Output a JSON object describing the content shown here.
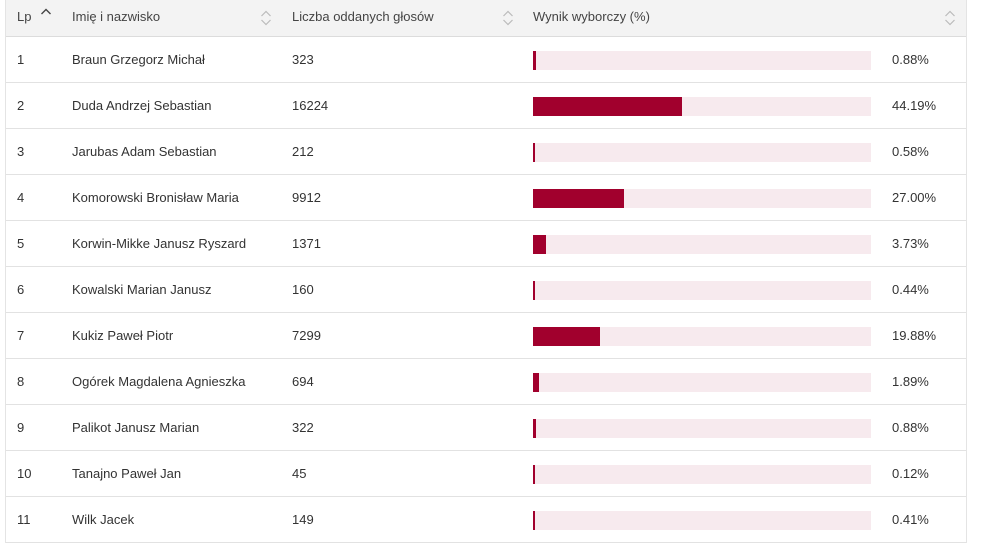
{
  "header": {
    "lp": "Lp",
    "name": "Imię i nazwisko",
    "votes": "Liczba oddanych głosów",
    "result": "Wynik wyborczy (%)"
  },
  "colors": {
    "bar": "#a1002d",
    "track": "#f7eaee"
  },
  "rows": [
    {
      "lp": "1",
      "name": "Braun Grzegorz Michał",
      "votes": "323",
      "pct_label": "0.88%",
      "pct": 0.88
    },
    {
      "lp": "2",
      "name": "Duda Andrzej Sebastian",
      "votes": "16224",
      "pct_label": "44.19%",
      "pct": 44.19
    },
    {
      "lp": "3",
      "name": "Jarubas Adam Sebastian",
      "votes": "212",
      "pct_label": "0.58%",
      "pct": 0.58
    },
    {
      "lp": "4",
      "name": "Komorowski Bronisław Maria",
      "votes": "9912",
      "pct_label": "27.00%",
      "pct": 27.0
    },
    {
      "lp": "5",
      "name": "Korwin-Mikke Janusz Ryszard",
      "votes": "1371",
      "pct_label": "3.73%",
      "pct": 3.73
    },
    {
      "lp": "6",
      "name": "Kowalski Marian Janusz",
      "votes": "160",
      "pct_label": "0.44%",
      "pct": 0.44
    },
    {
      "lp": "7",
      "name": "Kukiz Paweł Piotr",
      "votes": "7299",
      "pct_label": "19.88%",
      "pct": 19.88
    },
    {
      "lp": "8",
      "name": "Ogórek Magdalena Agnieszka",
      "votes": "694",
      "pct_label": "1.89%",
      "pct": 1.89
    },
    {
      "lp": "9",
      "name": "Palikot Janusz Marian",
      "votes": "322",
      "pct_label": "0.88%",
      "pct": 0.88
    },
    {
      "lp": "10",
      "name": "Tanajno Paweł Jan",
      "votes": "45",
      "pct_label": "0.12%",
      "pct": 0.12
    },
    {
      "lp": "11",
      "name": "Wilk Jacek",
      "votes": "149",
      "pct_label": "0.41%",
      "pct": 0.41
    }
  ]
}
